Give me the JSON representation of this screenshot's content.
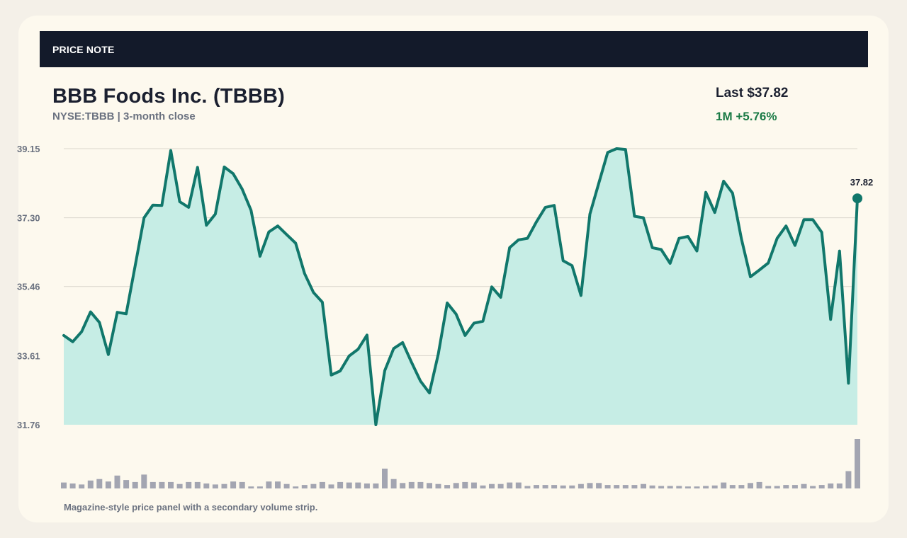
{
  "banner": {
    "label": "PRICE NOTE"
  },
  "header": {
    "title": "BBB Foods Inc. (TBBB)",
    "subtitle": "NYSE:TBBB | 3-month close",
    "last": "Last $37.82",
    "change": "1M +5.76%"
  },
  "footnote": "Magazine-style price panel with a secondary volume strip.",
  "colors": {
    "line": "#11776b",
    "fill": "#c6ede5",
    "volume": "#a3a5b1",
    "positive": "#1a7a45",
    "banner": "#131a2a"
  },
  "chart_data": {
    "type": "line",
    "title": "",
    "xlabel": "",
    "ylabel": "",
    "ylim": [
      31.76,
      39.15
    ],
    "yticks": [
      "39.15",
      "37.30",
      "35.46",
      "33.61",
      "31.76"
    ],
    "grid": true,
    "last_label": "37.82",
    "series": [
      {
        "values": [
          34.15,
          33.98,
          34.25,
          34.78,
          34.5,
          33.64,
          34.77,
          34.73,
          36.01,
          37.3,
          37.64,
          37.63,
          39.1,
          37.73,
          37.58,
          38.65,
          37.1,
          37.4,
          38.66,
          38.48,
          38.07,
          37.5,
          36.27,
          36.92,
          37.08,
          36.85,
          36.62,
          35.81,
          35.3,
          35.04,
          33.09,
          33.2,
          33.6,
          33.78,
          34.16,
          31.76,
          33.21,
          33.8,
          33.96,
          33.43,
          32.93,
          32.61,
          33.65,
          35.02,
          34.72,
          34.15,
          34.48,
          34.53,
          35.45,
          35.17,
          36.5,
          36.71,
          36.75,
          37.19,
          37.58,
          37.63,
          36.15,
          36.02,
          35.22,
          37.4,
          38.23,
          39.05,
          39.15,
          39.13,
          37.34,
          37.3,
          36.5,
          36.45,
          36.08,
          36.75,
          36.8,
          36.41,
          37.98,
          37.44,
          38.28,
          37.96,
          36.73,
          35.72,
          35.9,
          36.09,
          36.75,
          37.08,
          36.56,
          37.25,
          37.25,
          36.91,
          34.58,
          36.41,
          32.87,
          37.82
        ]
      }
    ],
    "volume": [
      0.12,
      0.1,
      0.08,
      0.16,
      0.19,
      0.14,
      0.26,
      0.17,
      0.13,
      0.28,
      0.13,
      0.13,
      0.13,
      0.09,
      0.13,
      0.13,
      0.1,
      0.08,
      0.09,
      0.14,
      0.13,
      0.04,
      0.04,
      0.14,
      0.14,
      0.09,
      0.04,
      0.07,
      0.09,
      0.13,
      0.08,
      0.13,
      0.12,
      0.12,
      0.1,
      0.1,
      0.4,
      0.19,
      0.11,
      0.13,
      0.13,
      0.11,
      0.09,
      0.07,
      0.11,
      0.13,
      0.12,
      0.06,
      0.09,
      0.09,
      0.12,
      0.12,
      0.05,
      0.07,
      0.07,
      0.07,
      0.06,
      0.06,
      0.09,
      0.11,
      0.11,
      0.07,
      0.07,
      0.07,
      0.07,
      0.09,
      0.06,
      0.05,
      0.05,
      0.05,
      0.04,
      0.04,
      0.05,
      0.06,
      0.12,
      0.07,
      0.07,
      0.11,
      0.13,
      0.05,
      0.05,
      0.07,
      0.07,
      0.09,
      0.05,
      0.07,
      0.1,
      0.1,
      0.35,
      1.0
    ]
  }
}
